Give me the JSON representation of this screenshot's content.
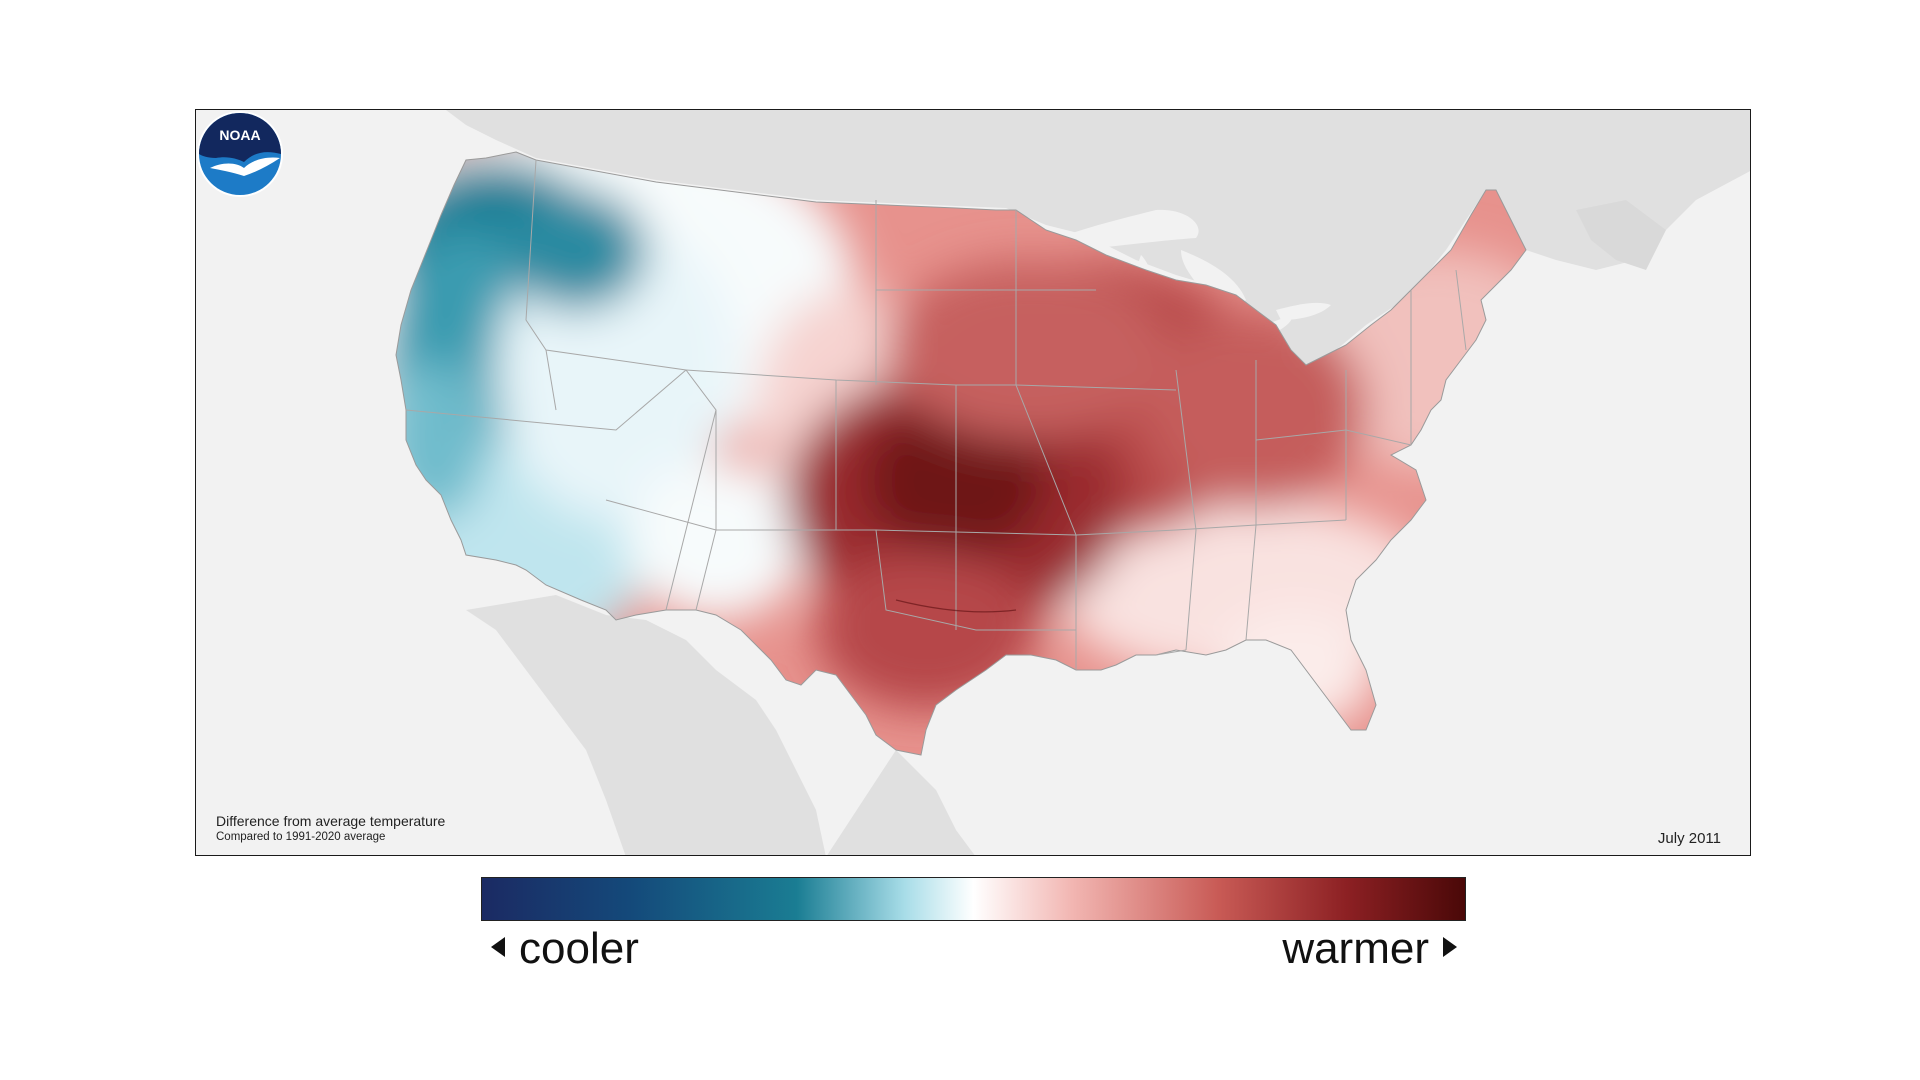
{
  "map": {
    "caption_title": "Difference from average temperature",
    "caption_subtitle": "Compared to 1991-2020 average",
    "date": "July 2011",
    "logo_text": "NOAA"
  },
  "legend": {
    "left_label": "cooler",
    "right_label": "warmer",
    "colors": [
      "#1b2a63",
      "#14497a",
      "#1a7d93",
      "#a8dde8",
      "#ffffff",
      "#f2b6b2",
      "#c85a55",
      "#8c2023",
      "#4a0808"
    ]
  },
  "colors": {
    "background_land": "#e0e0e0",
    "ocean": "#f2f2f2",
    "frame": "#1a1a1a"
  }
}
